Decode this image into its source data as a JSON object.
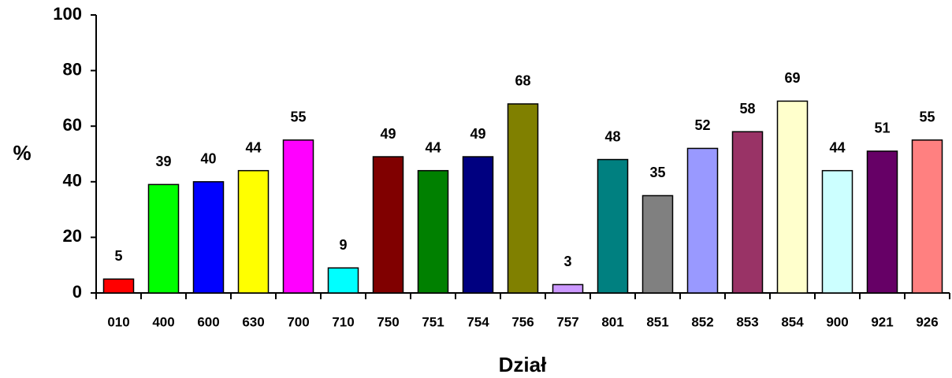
{
  "chart_data": {
    "type": "bar",
    "x_label": "Dział",
    "y_label": "%",
    "categories": [
      "010",
      "400",
      "600",
      "630",
      "700",
      "710",
      "750",
      "751",
      "754",
      "756",
      "757",
      "801",
      "851",
      "852",
      "853",
      "854",
      "900",
      "921",
      "926"
    ],
    "values": [
      5,
      39,
      40,
      44,
      55,
      9,
      49,
      44,
      49,
      68,
      3,
      48,
      35,
      52,
      58,
      69,
      44,
      51,
      55
    ],
    "colors": [
      "#ff0000",
      "#00ff00",
      "#0000ff",
      "#ffff00",
      "#ff00ff",
      "#00ffff",
      "#800000",
      "#008000",
      "#000080",
      "#808000",
      "#cc99ff",
      "#008080",
      "#808080",
      "#9999ff",
      "#993366",
      "#ffffcc",
      "#ccffff",
      "#660066",
      "#ff8080"
    ],
    "ylim": [
      0,
      100
    ],
    "yticks": [
      0,
      20,
      40,
      60,
      80,
      100
    ],
    "grid": false,
    "data_labels": true
  }
}
